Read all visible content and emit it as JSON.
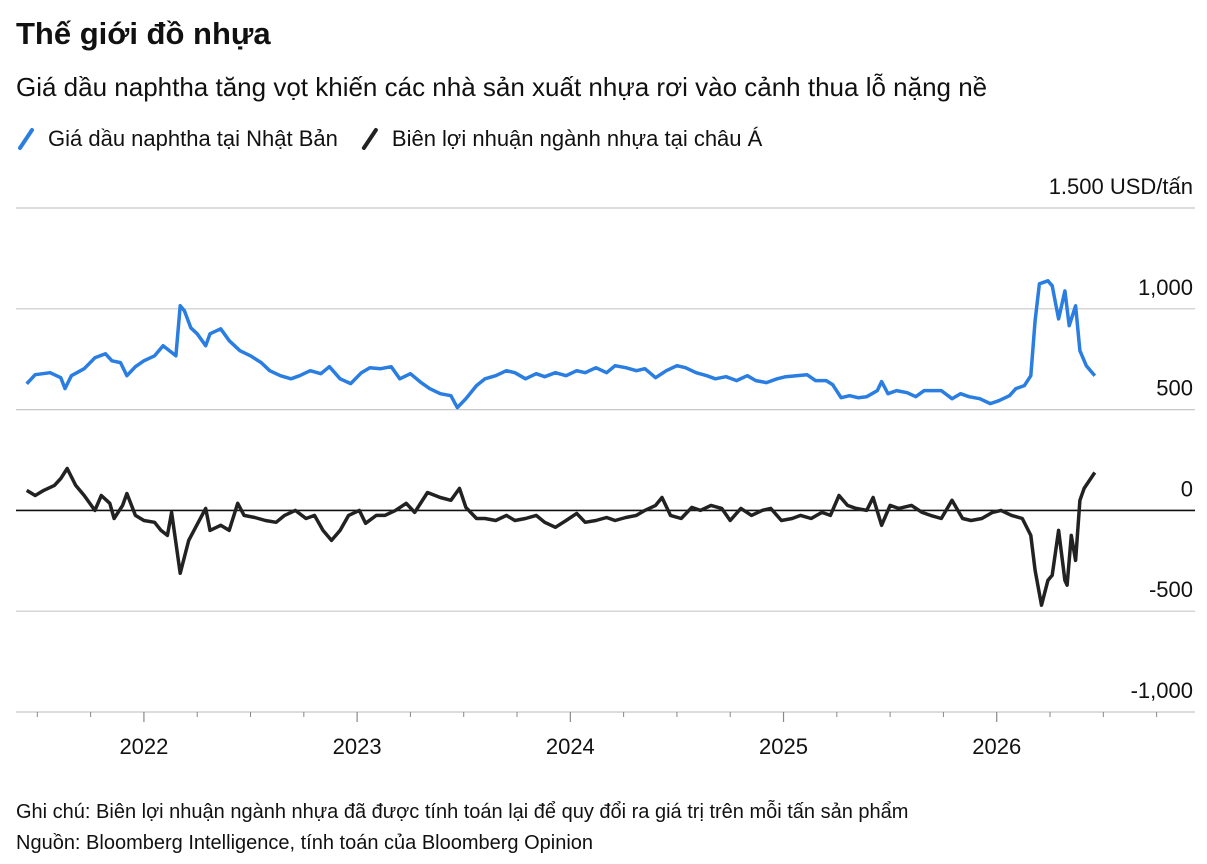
{
  "chart_data": {
    "type": "line",
    "title": "Thế giới đồ nhựa",
    "subtitle": "Giá dầu naphtha tăng vọt khiến các nhà sản xuất nhựa rơi vào cảnh thua lỗ nặng nề",
    "note": "Ghi chú: Biên lợi nhuận ngành nhựa đã được tính toán lại để quy đổi ra giá trị trên mỗi tấn sản phẩm",
    "source": "Nguồn: Bloomberg Intelligence, tính toán của Bloomberg Opinion",
    "xlim": [
      2021.4,
      2026.93
    ],
    "xticks": [
      2022,
      2023,
      2024,
      2025,
      2026
    ],
    "xminorticks": [
      2021.5,
      2021.75,
      2022.25,
      2022.5,
      2022.75,
      2023.25,
      2023.5,
      2023.75,
      2024.25,
      2024.5,
      2024.75,
      2025.25,
      2025.5,
      2025.75,
      2026.25,
      2026.5,
      2026.75
    ],
    "ylim": [
      -1000,
      1500
    ],
    "yticks": [
      {
        "value": -1000,
        "label": "-1,000"
      },
      -500,
      0,
      500,
      {
        "value": 1000,
        "label": "1,000"
      },
      {
        "value": 1500,
        "label": "1.500 USD/tấn"
      }
    ],
    "grid": true,
    "legend": "top-left",
    "series": [
      {
        "name": "Giá dầu naphtha tại Nhật Bản",
        "color": "#2a7de1",
        "x": [
          2021.45,
          2021.49,
          2021.56,
          2021.61,
          2021.63,
          2021.66,
          2021.72,
          2021.77,
          2021.82,
          2021.85,
          2021.89,
          2021.92,
          2021.96,
          2022,
          2022.05,
          2022.09,
          2022.12,
          2022.15,
          2022.17,
          2022.19,
          2022.22,
          2022.25,
          2022.29,
          2022.31,
          2022.36,
          2022.4,
          2022.45,
          2022.5,
          2022.55,
          2022.59,
          2022.64,
          2022.69,
          2022.73,
          2022.78,
          2022.83,
          2022.87,
          2022.92,
          2022.97,
          2023.02,
          2023.06,
          2023.11,
          2023.16,
          2023.2,
          2023.25,
          2023.3,
          2023.34,
          2023.39,
          2023.44,
          2023.47,
          2023.51,
          2023.56,
          2023.6,
          2023.65,
          2023.7,
          2023.74,
          2023.79,
          2023.84,
          2023.88,
          2023.93,
          2023.98,
          2024.03,
          2024.07,
          2024.12,
          2024.17,
          2024.21,
          2024.26,
          2024.31,
          2024.35,
          2024.4,
          2024.45,
          2024.5,
          2024.54,
          2024.59,
          2024.64,
          2024.68,
          2024.73,
          2024.78,
          2024.83,
          2024.87,
          2024.92,
          2024.97,
          2025.01,
          2025.06,
          2025.11,
          2025.15,
          2025.2,
          2025.23,
          2025.27,
          2025.31,
          2025.35,
          2025.39,
          2025.44,
          2025.46,
          2025.49,
          2025.53,
          2025.58,
          2025.62,
          2025.66,
          2025.7,
          2025.74,
          2025.79,
          2025.83,
          2025.87,
          2025.92,
          2025.97,
          2026.01,
          2026.06,
          2026.09,
          2026.13,
          2026.16,
          2026.18,
          2026.2,
          2026.24,
          2026.26,
          2026.29,
          2026.32,
          2026.34,
          2026.37,
          2026.39,
          2026.42,
          2026.46
        ],
        "values": [
          628,
          673,
          683,
          658,
          604,
          668,
          703,
          757,
          777,
          742,
          733,
          668,
          713,
          742,
          767,
          817,
          792,
          767,
          1015,
          990,
          906,
          876,
          817,
          876,
          901,
          842,
          792,
          767,
          733,
          693,
          668,
          653,
          668,
          693,
          678,
          713,
          653,
          629,
          683,
          708,
          703,
          713,
          653,
          678,
          634,
          604,
          579,
          569,
          510,
          554,
          619,
          653,
          668,
          693,
          683,
          653,
          678,
          663,
          683,
          668,
          693,
          683,
          708,
          683,
          718,
          708,
          693,
          703,
          658,
          693,
          718,
          708,
          683,
          668,
          653,
          663,
          644,
          668,
          644,
          634,
          653,
          663,
          668,
          673,
          644,
          644,
          624,
          559,
          569,
          559,
          564,
          594,
          639,
          579,
          594,
          584,
          564,
          594,
          594,
          594,
          554,
          579,
          564,
          554,
          530,
          544,
          569,
          604,
          619,
          668,
          941,
          1124,
          1139,
          1114,
          950,
          1089,
          916,
          1015,
          792,
          718,
          668
        ]
      },
      {
        "name": "Biên lợi nhuận ngành nhựa tại châu Á",
        "color": "#222222",
        "x": [
          2021.45,
          2021.49,
          2021.53,
          2021.58,
          2021.61,
          2021.64,
          2021.68,
          2021.72,
          2021.77,
          2021.8,
          2021.84,
          2021.86,
          2021.9,
          2021.92,
          2021.96,
          2022,
          2022.05,
          2022.08,
          2022.11,
          2022.13,
          2022.17,
          2022.21,
          2022.24,
          2022.29,
          2022.31,
          2022.36,
          2022.4,
          2022.44,
          2022.47,
          2022.52,
          2022.57,
          2022.62,
          2022.66,
          2022.71,
          2022.76,
          2022.8,
          2022.84,
          2022.88,
          2022.92,
          2022.96,
          2023.01,
          2023.04,
          2023.09,
          2023.13,
          2023.18,
          2023.23,
          2023.27,
          2023.33,
          2023.39,
          2023.44,
          2023.48,
          2023.51,
          2023.56,
          2023.6,
          2023.65,
          2023.7,
          2023.74,
          2023.79,
          2023.84,
          2023.88,
          2023.93,
          2023.98,
          2024.03,
          2024.07,
          2024.12,
          2024.17,
          2024.21,
          2024.26,
          2024.31,
          2024.35,
          2024.4,
          2024.43,
          2024.47,
          2024.52,
          2024.57,
          2024.61,
          2024.66,
          2024.71,
          2024.75,
          2024.8,
          2024.85,
          2024.9,
          2024.94,
          2024.99,
          2025.04,
          2025.08,
          2025.13,
          2025.18,
          2025.22,
          2025.26,
          2025.3,
          2025.34,
          2025.39,
          2025.42,
          2025.46,
          2025.5,
          2025.54,
          2025.6,
          2025.65,
          2025.69,
          2025.74,
          2025.79,
          2025.84,
          2025.88,
          2025.93,
          2025.98,
          2026.02,
          2026.07,
          2026.12,
          2026.16,
          2026.18,
          2026.21,
          2026.24,
          2026.26,
          2026.29,
          2026.32,
          2026.33,
          2026.35,
          2026.37,
          2026.39,
          2026.41,
          2026.46
        ],
        "values": [
          99,
          74,
          99,
          124,
          158,
          208,
          124,
          74,
          0,
          74,
          35,
          -40,
          25,
          84,
          -25,
          -50,
          -59,
          -99,
          -124,
          -10,
          -312,
          -149,
          -89,
          10,
          -99,
          -74,
          -99,
          35,
          -25,
          -35,
          -50,
          -59,
          -25,
          0,
          -40,
          -25,
          -99,
          -149,
          -99,
          -25,
          0,
          -64,
          -25,
          -25,
          0,
          35,
          -10,
          89,
          64,
          50,
          109,
          15,
          -40,
          -40,
          -50,
          -25,
          -50,
          -40,
          -25,
          -59,
          -84,
          -50,
          -15,
          -59,
          -50,
          -35,
          -50,
          -35,
          -25,
          0,
          25,
          64,
          -25,
          -40,
          15,
          0,
          25,
          10,
          -50,
          10,
          -25,
          0,
          10,
          -50,
          -40,
          -25,
          -40,
          -10,
          -25,
          74,
          25,
          10,
          0,
          64,
          -74,
          25,
          10,
          25,
          -10,
          -25,
          -40,
          50,
          -40,
          -50,
          -40,
          -10,
          0,
          -25,
          -40,
          -124,
          -297,
          -470,
          -347,
          -322,
          -99,
          -347,
          -371,
          -124,
          -248,
          50,
          109,
          188
        ]
      }
    ]
  }
}
